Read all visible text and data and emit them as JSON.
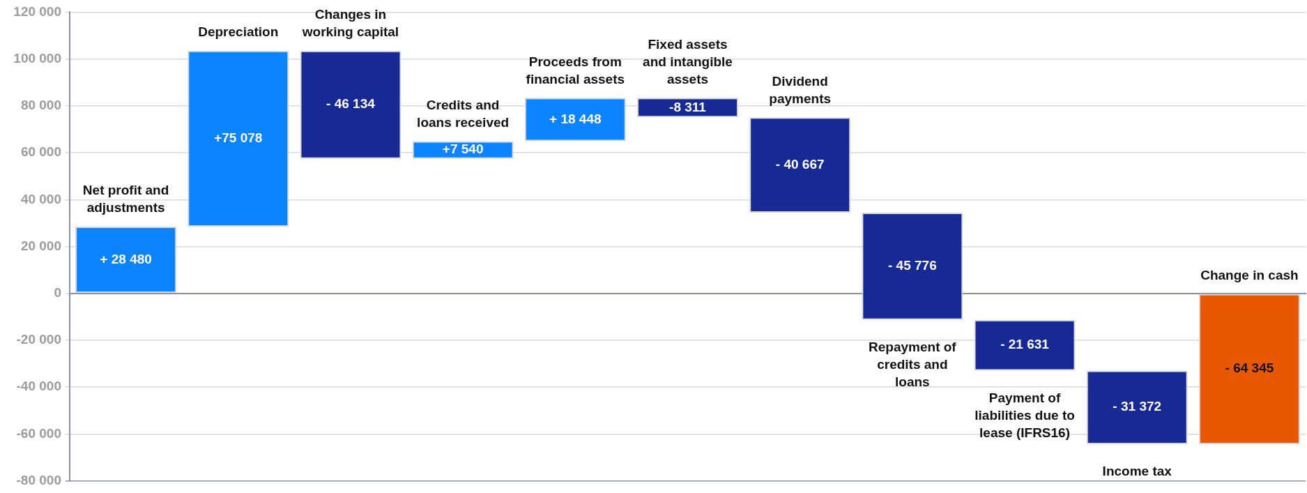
{
  "chart_data": {
    "type": "bar",
    "categories": [
      "Net profit and adjustments",
      "Depreciation",
      "Changes in working capital",
      "Credits and loans received",
      "Proceeds from financial assets",
      "Fixed assets and intangible assets",
      "Dividend payments",
      "Repayment of credits and loans",
      "Payment of liabilities due to lease (IFRS16)",
      "Income tax",
      "Change in cash"
    ],
    "values": [
      28480,
      75078,
      -46134,
      7540,
      18448,
      -8311,
      -40667,
      -45776,
      -21631,
      -31372,
      -64345
    ],
    "base": [
      0,
      28480,
      103558,
      57424,
      64964,
      83412,
      75101,
      34434,
      -11342,
      -32973,
      0
    ],
    "colors": [
      "#0c84ff",
      "#0c84ff",
      "#162994",
      "#0c84ff",
      "#0c84ff",
      "#162994",
      "#162994",
      "#162994",
      "#162994",
      "#162994",
      "#e85702"
    ],
    "value_labels": [
      "+ 28 480",
      "+75 078",
      "- 46 134",
      "+7 540",
      "+ 18 448",
      "-8 311",
      "- 40 667",
      "- 45 776",
      "- 21 631",
      "- 31 372",
      "- 64 345"
    ],
    "ylim": [
      -80000,
      120000
    ],
    "yticks": [
      {
        "value": -80000,
        "label": "-80 000"
      },
      {
        "value": -60000,
        "label": "-60 000"
      },
      {
        "value": -40000,
        "label": "-40 000"
      },
      {
        "value": -20000,
        "label": "-20 000"
      },
      0,
      {
        "value": 20000,
        "label": "20 000"
      },
      {
        "value": 40000,
        "label": "40 000"
      },
      {
        "value": 60000,
        "label": "60 000"
      },
      {
        "value": 80000,
        "label": "80 000"
      },
      {
        "value": 100000,
        "label": "100 000"
      },
      {
        "value": 120000,
        "label": "120 000"
      }
    ],
    "grid": "y",
    "tick_labels": "y"
  }
}
